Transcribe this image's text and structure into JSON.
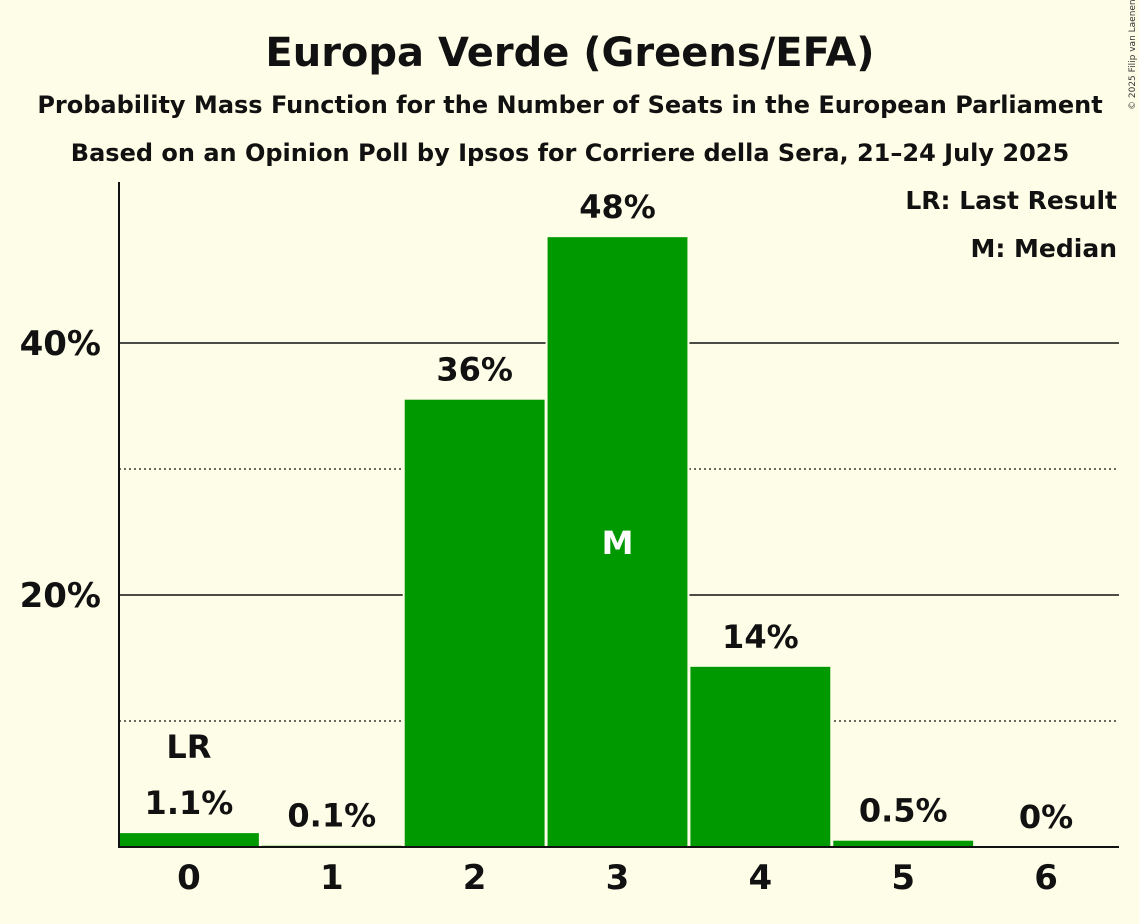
{
  "copyright": "© 2025 Filip van Laenen",
  "chart_data": {
    "type": "bar",
    "title": "Europa Verde (Greens/EFA)",
    "subtitle1": "Probability Mass Function for the Number of Seats in the European Parliament",
    "subtitle2": "Based on an Opinion Poll by Ipsos for Corriere della Sera, 21–24 July 2025",
    "categories": [
      "0",
      "1",
      "2",
      "3",
      "4",
      "5",
      "6"
    ],
    "values": [
      1.1,
      0.1,
      35.5,
      48.4,
      14.3,
      0.5,
      0.0
    ],
    "value_labels": [
      "1.1%",
      "0.1%",
      "36%",
      "48%",
      "14%",
      "0.5%",
      "0%"
    ],
    "last_result_index": 0,
    "median_index": 3,
    "last_result_marker": "LR",
    "median_marker": "M",
    "legend": [
      "LR: Last Result",
      "M: Median"
    ],
    "legend_position": "top-right",
    "ylim": [
      0,
      52.5
    ],
    "major_ticks": [
      20,
      40
    ],
    "major_tick_labels": [
      "20%",
      "40%"
    ],
    "minor_gridlines": [
      10,
      30
    ],
    "bar_color": "#009900",
    "background_color": "#FEFDE7"
  }
}
